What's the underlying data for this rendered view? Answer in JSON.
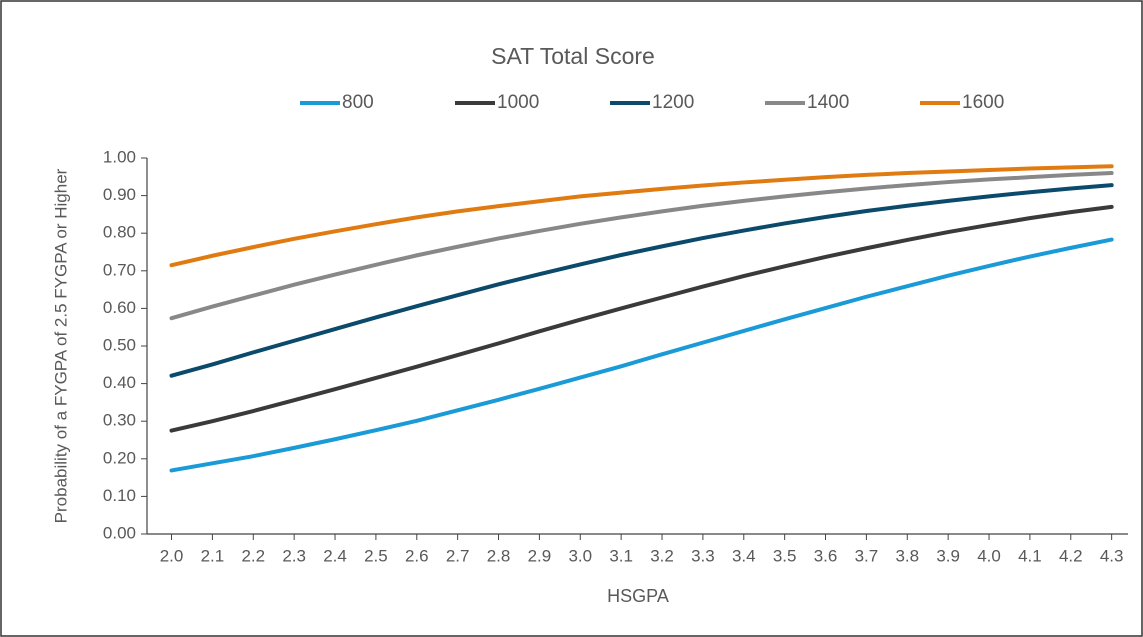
{
  "chart_data": {
    "type": "line",
    "title": "SAT Total Score",
    "x_label": "HSGPA",
    "y_label": "Probability of a FYGPA of 2.5 FYGPA or Higher",
    "x": [
      2.0,
      2.1,
      2.2,
      2.3,
      2.4,
      2.5,
      2.6,
      2.7,
      2.8,
      2.9,
      3.0,
      3.1,
      3.2,
      3.3,
      3.4,
      3.5,
      3.6,
      3.7,
      3.8,
      3.9,
      4.0,
      4.1,
      4.2,
      4.3
    ],
    "series": [
      {
        "name": "800",
        "color": "#1a9ad6",
        "values": [
          0.169,
          0.188,
          0.207,
          0.229,
          0.252,
          0.276,
          0.301,
          0.329,
          0.357,
          0.386,
          0.416,
          0.446,
          0.478,
          0.509,
          0.54,
          0.571,
          0.601,
          0.631,
          0.659,
          0.687,
          0.713,
          0.738,
          0.761,
          0.783
        ]
      },
      {
        "name": "1000",
        "color": "#3a3a3a",
        "values": [
          0.275,
          0.3,
          0.327,
          0.356,
          0.385,
          0.415,
          0.445,
          0.476,
          0.507,
          0.539,
          0.57,
          0.6,
          0.629,
          0.658,
          0.686,
          0.712,
          0.737,
          0.76,
          0.782,
          0.803,
          0.822,
          0.84,
          0.856,
          0.87
        ]
      },
      {
        "name": "1200",
        "color": "#0b4a6b",
        "values": [
          0.421,
          0.451,
          0.483,
          0.514,
          0.545,
          0.576,
          0.606,
          0.635,
          0.664,
          0.691,
          0.717,
          0.742,
          0.765,
          0.787,
          0.807,
          0.826,
          0.843,
          0.859,
          0.873,
          0.886,
          0.898,
          0.909,
          0.919,
          0.928
        ]
      },
      {
        "name": "1400",
        "color": "#888888",
        "values": [
          0.574,
          0.605,
          0.634,
          0.663,
          0.69,
          0.716,
          0.741,
          0.764,
          0.786,
          0.806,
          0.825,
          0.842,
          0.858,
          0.873,
          0.886,
          0.898,
          0.909,
          0.919,
          0.928,
          0.936,
          0.943,
          0.949,
          0.955,
          0.96
        ]
      },
      {
        "name": "1600",
        "color": "#e07b12",
        "values": [
          0.715,
          0.74,
          0.763,
          0.785,
          0.805,
          0.824,
          0.842,
          0.858,
          0.872,
          0.885,
          0.898,
          0.908,
          0.918,
          0.927,
          0.935,
          0.942,
          0.949,
          0.955,
          0.96,
          0.964,
          0.968,
          0.972,
          0.975,
          0.978
        ]
      }
    ],
    "xlim": [
      1.94,
      4.34
    ],
    "xticks": [
      {
        "value": 2.0,
        "label": "2.0"
      },
      2.1,
      2.2,
      2.3,
      2.4,
      2.5,
      2.6,
      2.7,
      2.8,
      2.9,
      {
        "value": 3.0,
        "label": "3.0"
      },
      3.1,
      3.2,
      3.3,
      3.4,
      3.5,
      3.6,
      3.7,
      3.8,
      3.9,
      {
        "value": 4.0,
        "label": "4.0"
      },
      4.1,
      4.2,
      4.3
    ],
    "ylim": [
      0,
      1
    ],
    "yticks": [
      {
        "value": 0,
        "label": "0.00"
      },
      {
        "value": 0.1,
        "label": "0.10"
      },
      {
        "value": 0.2,
        "label": "0.20"
      },
      {
        "value": 0.3,
        "label": "0.30"
      },
      {
        "value": 0.4,
        "label": "0.40"
      },
      {
        "value": 0.5,
        "label": "0.50"
      },
      {
        "value": 0.6,
        "label": "0.60"
      },
      {
        "value": 0.7,
        "label": "0.70"
      },
      {
        "value": 0.8,
        "label": "0.80"
      },
      {
        "value": 0.9,
        "label": "0.90"
      },
      {
        "value": 1,
        "label": "1.00"
      }
    ],
    "legend": "top",
    "grid": false
  }
}
